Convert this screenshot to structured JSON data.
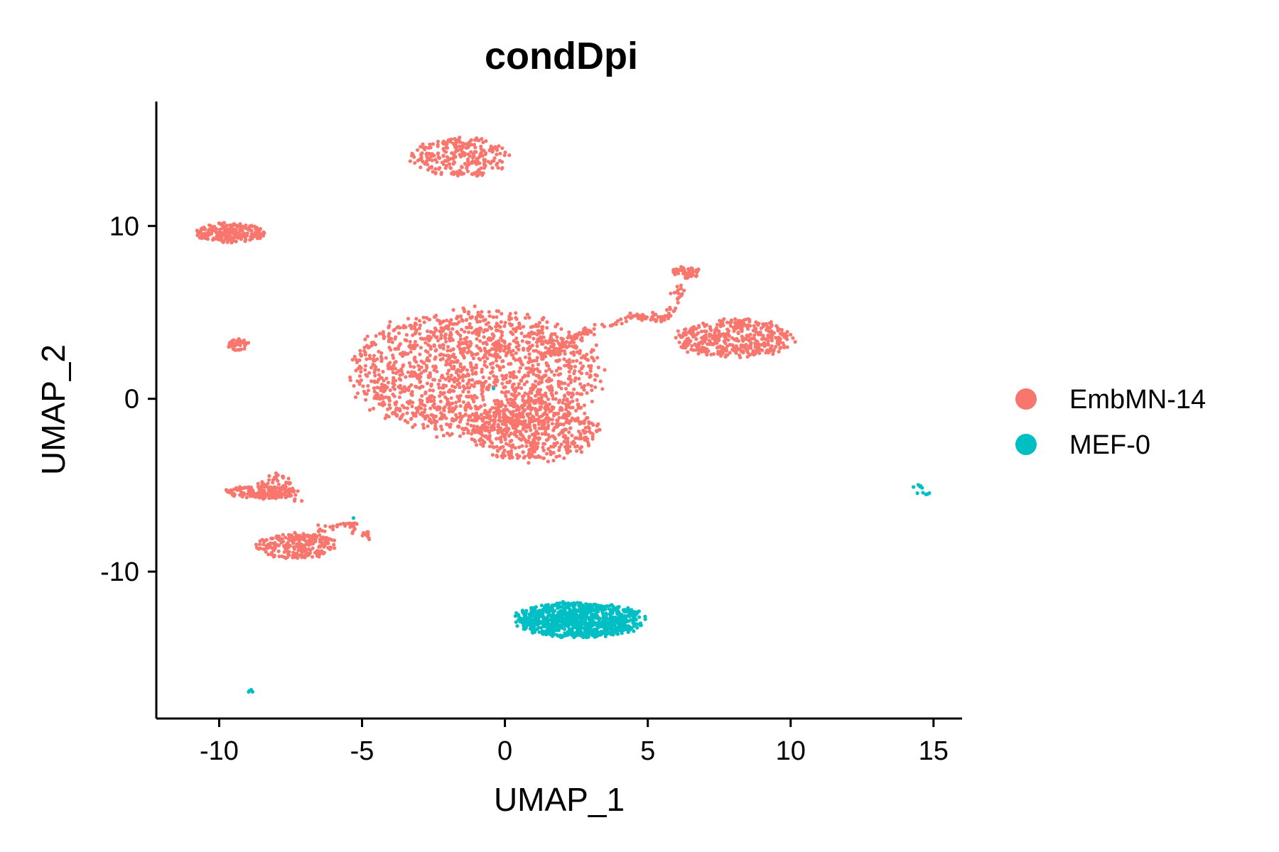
{
  "chart_data": {
    "type": "scatter",
    "title": "condDpi",
    "xlabel": "UMAP_1",
    "ylabel": "UMAP_2",
    "xlim": [
      -12.2,
      16.0
    ],
    "ylim": [
      -18.5,
      17.2
    ],
    "xticks": [
      -10,
      -5,
      0,
      5,
      10,
      15
    ],
    "yticks": [
      -10,
      0,
      10
    ],
    "xtick_labels": [
      "-10",
      "-5",
      "0",
      "5",
      "10",
      "15"
    ],
    "ytick_labels": [
      "-10",
      "0",
      "10"
    ],
    "grid": false,
    "legend_position": "right",
    "legend": [
      {
        "label": "EmbMN-14",
        "color": "#F8766D"
      },
      {
        "label": "MEF-0",
        "color": "#00BFC4"
      }
    ],
    "series": [
      {
        "name": "EmbMN-14",
        "color": "#F8766D",
        "clusters": [
          {
            "cx": -1.0,
            "cy": 1.5,
            "rx": 4.7,
            "ry": 3.9,
            "n": 1600
          },
          {
            "cx": 1.0,
            "cy": -1.8,
            "rx": 2.4,
            "ry": 2.0,
            "n": 500
          },
          {
            "cx": -1.5,
            "cy": 14.0,
            "rx": 1.9,
            "ry": 1.2,
            "n": 260
          },
          {
            "cx": -9.6,
            "cy": 9.6,
            "rx": 1.3,
            "ry": 0.6,
            "n": 220
          },
          {
            "cx": -9.3,
            "cy": 3.1,
            "rx": 0.4,
            "ry": 0.4,
            "n": 40
          },
          {
            "cx": 8.0,
            "cy": 3.5,
            "rx": 2.2,
            "ry": 1.2,
            "n": 420
          },
          {
            "cx": 6.3,
            "cy": 7.3,
            "rx": 0.6,
            "ry": 0.4,
            "n": 50
          },
          {
            "cx": -8.5,
            "cy": -5.4,
            "rx": 1.4,
            "ry": 0.4,
            "n": 160
          },
          {
            "cx": -7.3,
            "cy": -8.5,
            "rx": 1.5,
            "ry": 0.8,
            "n": 240
          }
        ],
        "paths": [
          {
            "points": [
              [
                1.5,
                2.6
              ],
              [
                2.8,
                3.8
              ],
              [
                4.5,
                4.8
              ],
              [
                5.6,
                4.6
              ],
              [
                6.2,
                6.5
              ]
            ],
            "n": 140
          },
          {
            "points": [
              [
                -7.5,
                -8.2
              ],
              [
                -5.5,
                -7.2
              ],
              [
                -4.8,
                -8.0
              ]
            ],
            "n": 50
          },
          {
            "points": [
              [
                -8.5,
                -5.0
              ],
              [
                -7.8,
                -4.5
              ],
              [
                -7.2,
                -6.0
              ]
            ],
            "n": 40
          }
        ]
      },
      {
        "name": "MEF-0",
        "color": "#00BFC4",
        "clusters": [
          {
            "cx": 2.6,
            "cy": -12.8,
            "rx": 2.4,
            "ry": 1.1,
            "n": 900
          },
          {
            "cx": -8.9,
            "cy": -16.9,
            "rx": 0.1,
            "ry": 0.1,
            "n": 4
          }
        ],
        "paths": [
          {
            "points": [
              [
                14.3,
                -5.0
              ],
              [
                14.8,
                -5.5
              ]
            ],
            "n": 10
          }
        ],
        "singles": [
          [
            -0.4,
            0.6
          ],
          [
            -5.3,
            -6.9
          ]
        ]
      }
    ]
  }
}
